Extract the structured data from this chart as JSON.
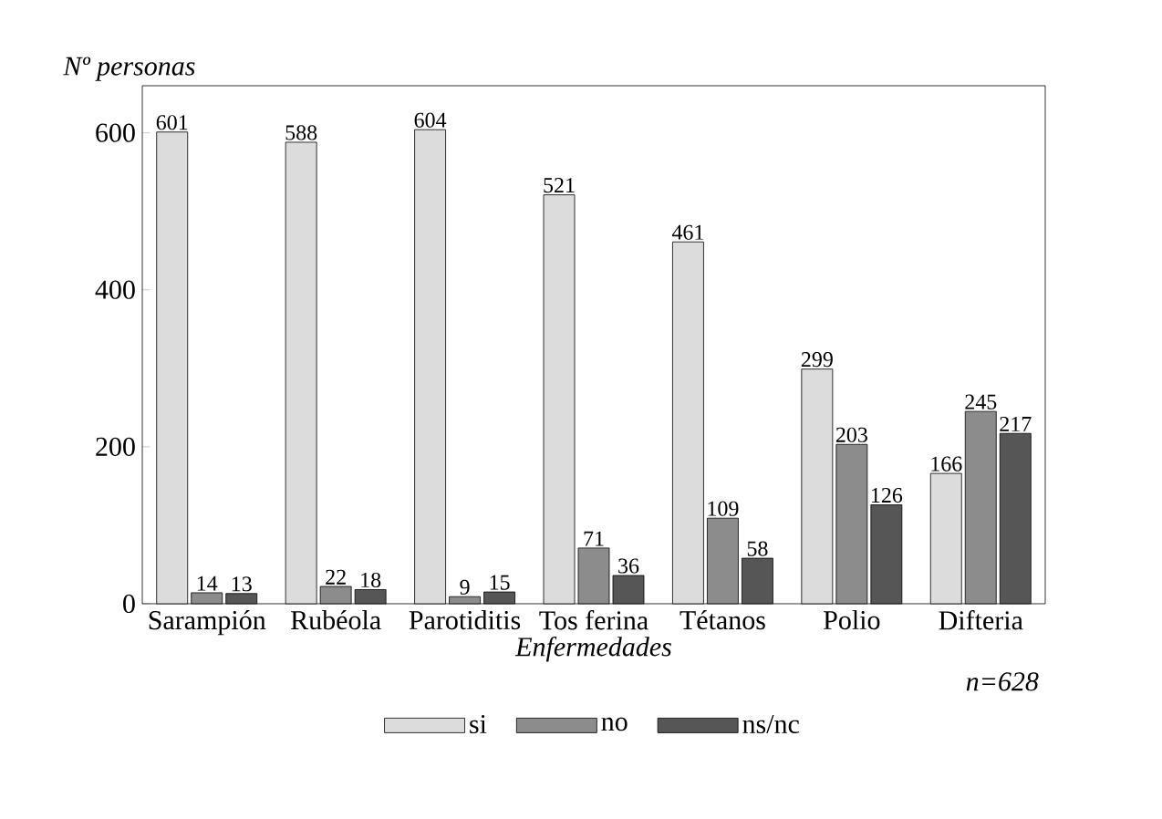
{
  "chart_data": {
    "type": "bar",
    "xlabel": "Enfermedades",
    "ylabel": "Nº personas",
    "categories": [
      "Sarampión",
      "Rubéola",
      "Parotiditis",
      "Tos ferina",
      "Tétanos",
      "Polio",
      "Difteria"
    ],
    "series": [
      {
        "name": "si",
        "color": "#dcdcdc",
        "values": [
          601,
          588,
          604,
          521,
          461,
          299,
          166
        ]
      },
      {
        "name": "no",
        "color": "#8c8c8c",
        "values": [
          14,
          22,
          9,
          71,
          109,
          203,
          245
        ]
      },
      {
        "name": "ns/nc",
        "color": "#565656",
        "values": [
          13,
          18,
          15,
          36,
          58,
          126,
          217
        ]
      }
    ],
    "ylim": [
      0,
      660
    ],
    "yticks": [
      0,
      200,
      400,
      600
    ],
    "data_labels": true,
    "legend": "bottom",
    "annotations": [
      "n=628"
    ]
  }
}
